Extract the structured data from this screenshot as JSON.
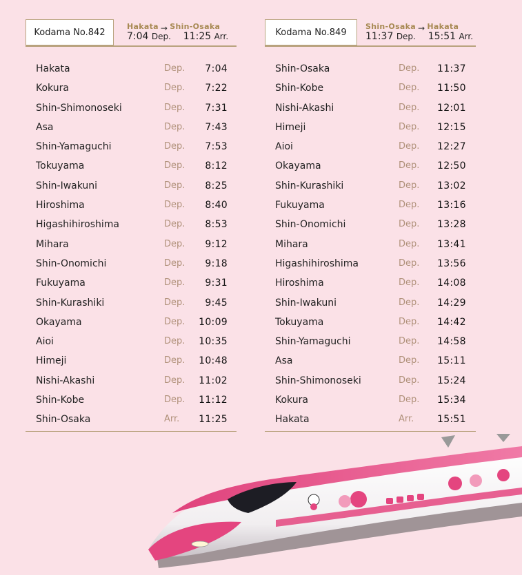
{
  "left": {
    "train_name": "Kodama No.842",
    "route_from": "Hakata",
    "route_to": "Shin-Osaka",
    "dep_time": "7:04",
    "dep_label": "Dep.",
    "arr_time": "11:25",
    "arr_label": "Arr.",
    "stops": [
      {
        "station": "Hakata",
        "kind": "Dep.",
        "time": "7:04"
      },
      {
        "station": "Kokura",
        "kind": "Dep.",
        "time": "7:22"
      },
      {
        "station": "Shin-Shimonoseki",
        "kind": "Dep.",
        "time": "7:31"
      },
      {
        "station": "Asa",
        "kind": "Dep.",
        "time": "7:43"
      },
      {
        "station": "Shin-Yamaguchi",
        "kind": "Dep.",
        "time": "7:53"
      },
      {
        "station": "Tokuyama",
        "kind": "Dep.",
        "time": "8:12"
      },
      {
        "station": "Shin-Iwakuni",
        "kind": "Dep.",
        "time": "8:25"
      },
      {
        "station": "Hiroshima",
        "kind": "Dep.",
        "time": "8:40"
      },
      {
        "station": "Higashihiroshima",
        "kind": "Dep.",
        "time": "8:53"
      },
      {
        "station": "Mihara",
        "kind": "Dep.",
        "time": "9:12"
      },
      {
        "station": "Shin-Onomichi",
        "kind": "Dep.",
        "time": "9:18"
      },
      {
        "station": "Fukuyama",
        "kind": "Dep.",
        "time": "9:31"
      },
      {
        "station": "Shin-Kurashiki",
        "kind": "Dep.",
        "time": "9:45"
      },
      {
        "station": "Okayama",
        "kind": "Dep.",
        "time": "10:09"
      },
      {
        "station": "Aioi",
        "kind": "Dep.",
        "time": "10:35"
      },
      {
        "station": "Himeji",
        "kind": "Dep.",
        "time": "10:48"
      },
      {
        "station": "Nishi-Akashi",
        "kind": "Dep.",
        "time": "11:02"
      },
      {
        "station": "Shin-Kobe",
        "kind": "Dep.",
        "time": "11:12"
      },
      {
        "station": "Shin-Osaka",
        "kind": "Arr.",
        "time": "11:25"
      }
    ]
  },
  "right": {
    "train_name": "Kodama No.849",
    "route_from": "Shin-Osaka",
    "route_to": "Hakata",
    "dep_time": "11:37",
    "dep_label": "Dep.",
    "arr_time": "15:51",
    "arr_label": "Arr.",
    "stops": [
      {
        "station": "Shin-Osaka",
        "kind": "Dep.",
        "time": "11:37"
      },
      {
        "station": "Shin-Kobe",
        "kind": "Dep.",
        "time": "11:50"
      },
      {
        "station": "Nishi-Akashi",
        "kind": "Dep.",
        "time": "12:01"
      },
      {
        "station": "Himeji",
        "kind": "Dep.",
        "time": "12:15"
      },
      {
        "station": "Aioi",
        "kind": "Dep.",
        "time": "12:27"
      },
      {
        "station": "Okayama",
        "kind": "Dep.",
        "time": "12:50"
      },
      {
        "station": "Shin-Kurashiki",
        "kind": "Dep.",
        "time": "13:02"
      },
      {
        "station": "Fukuyama",
        "kind": "Dep.",
        "time": "13:16"
      },
      {
        "station": "Shin-Onomichi",
        "kind": "Dep.",
        "time": "13:28"
      },
      {
        "station": "Mihara",
        "kind": "Dep.",
        "time": "13:41"
      },
      {
        "station": "Higashihiroshima",
        "kind": "Dep.",
        "time": "13:56"
      },
      {
        "station": "Hiroshima",
        "kind": "Dep.",
        "time": "14:08"
      },
      {
        "station": "Shin-Iwakuni",
        "kind": "Dep.",
        "time": "14:29"
      },
      {
        "station": "Tokuyama",
        "kind": "Dep.",
        "time": "14:42"
      },
      {
        "station": "Shin-Yamaguchi",
        "kind": "Dep.",
        "time": "14:58"
      },
      {
        "station": "Asa",
        "kind": "Dep.",
        "time": "15:11"
      },
      {
        "station": "Shin-Shimonoseki",
        "kind": "Dep.",
        "time": "15:24"
      },
      {
        "station": "Kokura",
        "kind": "Dep.",
        "time": "15:34"
      },
      {
        "station": "Hakata",
        "kind": "Arr.",
        "time": "15:51"
      }
    ]
  },
  "colors": {
    "background": "#fbe1e7",
    "accent_gold": "#b8a27d",
    "kind_text": "#b0917a",
    "train_pink": "#e4457f"
  },
  "image": {
    "train_icon": "shinkansen-train-illustration"
  }
}
